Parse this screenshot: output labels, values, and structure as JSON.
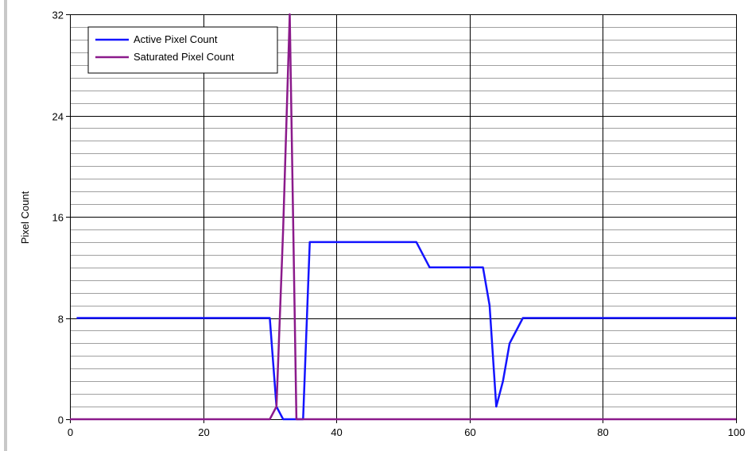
{
  "chart_data": {
    "type": "line",
    "title": "",
    "xlabel": "",
    "ylabel": "Pixel Count",
    "xlim": [
      0,
      100
    ],
    "ylim": [
      0,
      32
    ],
    "x_ticks": [
      0,
      20,
      40,
      60,
      80,
      100
    ],
    "y_ticks": [
      0,
      8,
      16,
      24,
      32
    ],
    "y_minor_step": 1,
    "grid": true,
    "legend_position": "top-left",
    "series": [
      {
        "name": "Active Pixel Count",
        "color": "#1414ff",
        "points": [
          [
            1,
            8
          ],
          [
            30,
            8
          ],
          [
            31,
            1
          ],
          [
            32,
            0
          ],
          [
            35,
            0
          ],
          [
            36,
            14
          ],
          [
            52,
            14
          ],
          [
            54,
            12
          ],
          [
            62,
            12
          ],
          [
            63,
            9
          ],
          [
            64,
            1
          ],
          [
            65,
            3
          ],
          [
            66,
            6
          ],
          [
            68,
            8
          ],
          [
            100,
            8
          ]
        ]
      },
      {
        "name": "Saturated Pixel Count",
        "color": "#8b1a8b",
        "points": [
          [
            0,
            0
          ],
          [
            30,
            0
          ],
          [
            31,
            1
          ],
          [
            32,
            15
          ],
          [
            33,
            32
          ],
          [
            34,
            0
          ],
          [
            100,
            0
          ]
        ]
      }
    ]
  }
}
